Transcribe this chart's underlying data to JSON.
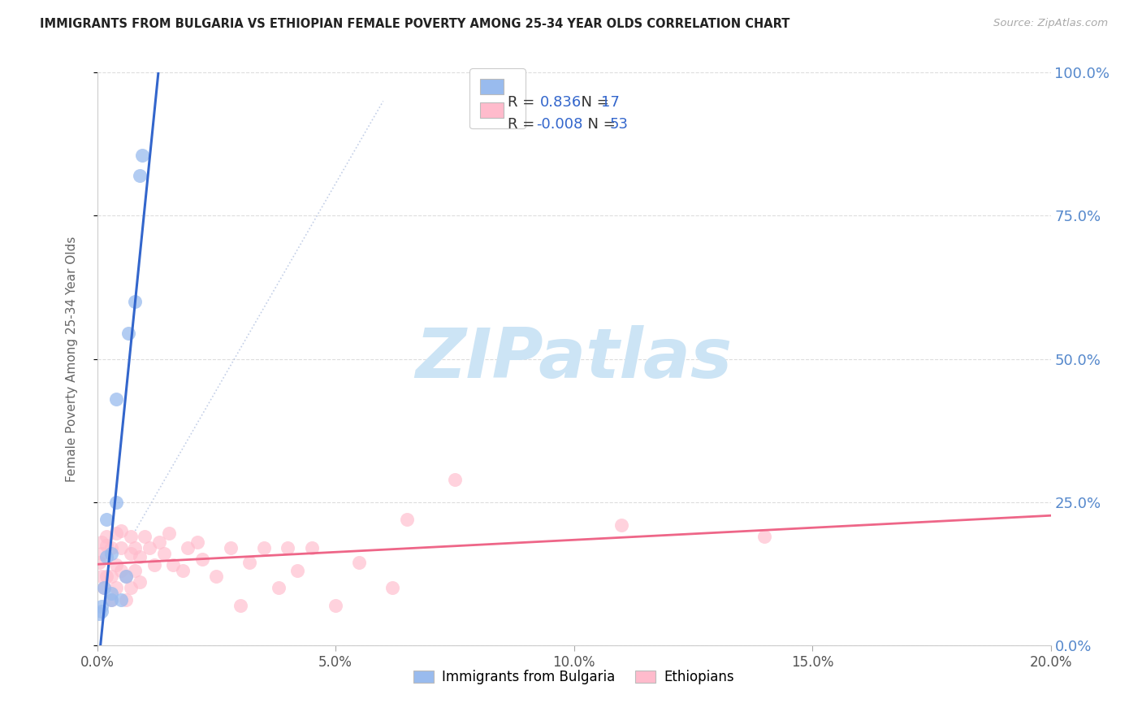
{
  "title": "IMMIGRANTS FROM BULGARIA VS ETHIOPIAN FEMALE POVERTY AMONG 25-34 YEAR OLDS CORRELATION CHART",
  "source": "Source: ZipAtlas.com",
  "ylabel": "Female Poverty Among 25-34 Year Olds",
  "xlim": [
    0.0,
    0.2
  ],
  "ylim": [
    0.0,
    1.0
  ],
  "yticks": [
    0.0,
    0.25,
    0.5,
    0.75,
    1.0
  ],
  "ytick_labels_right": [
    "0.0%",
    "25.0%",
    "50.0%",
    "75.0%",
    "100.0%"
  ],
  "xticks": [
    0.0,
    0.05,
    0.1,
    0.15,
    0.2
  ],
  "xtick_labels": [
    "0.0%",
    "5.0%",
    "10.0%",
    "15.0%",
    "20.0%"
  ],
  "legend_label_1": "Immigrants from Bulgaria",
  "legend_label_2": "Ethiopians",
  "R_bulgaria": 0.836,
  "N_bulgaria": 17,
  "R_ethiopian": -0.008,
  "N_ethiopian": 53,
  "blue_scatter_color": "#99bbee",
  "pink_scatter_color": "#ffbbcc",
  "blue_line_color": "#3366cc",
  "pink_line_color": "#ee6688",
  "blue_text_color": "#3366cc",
  "right_axis_color": "#5588cc",
  "watermark_color": "#cce4f5",
  "watermark": "ZIPatlas",
  "bulgaria_x": [
    0.0005,
    0.001,
    0.001,
    0.0015,
    0.002,
    0.002,
    0.003,
    0.003,
    0.003,
    0.004,
    0.004,
    0.005,
    0.006,
    0.0065,
    0.008,
    0.009,
    0.0095
  ],
  "bulgaria_y": [
    0.055,
    0.068,
    0.06,
    0.1,
    0.22,
    0.155,
    0.08,
    0.09,
    0.16,
    0.43,
    0.25,
    0.08,
    0.12,
    0.545,
    0.6,
    0.82,
    0.855
  ],
  "ethiopian_x": [
    0.0005,
    0.001,
    0.001,
    0.001,
    0.0015,
    0.002,
    0.002,
    0.002,
    0.003,
    0.003,
    0.003,
    0.004,
    0.004,
    0.004,
    0.005,
    0.005,
    0.005,
    0.006,
    0.006,
    0.007,
    0.007,
    0.007,
    0.008,
    0.008,
    0.009,
    0.009,
    0.01,
    0.011,
    0.012,
    0.013,
    0.014,
    0.015,
    0.016,
    0.018,
    0.019,
    0.021,
    0.022,
    0.025,
    0.028,
    0.03,
    0.032,
    0.035,
    0.038,
    0.04,
    0.042,
    0.045,
    0.05,
    0.055,
    0.062,
    0.065,
    0.075,
    0.11,
    0.14
  ],
  "ethiopian_y": [
    0.145,
    0.16,
    0.12,
    0.18,
    0.1,
    0.12,
    0.175,
    0.19,
    0.08,
    0.12,
    0.17,
    0.1,
    0.14,
    0.195,
    0.13,
    0.17,
    0.2,
    0.08,
    0.12,
    0.1,
    0.16,
    0.19,
    0.13,
    0.17,
    0.11,
    0.155,
    0.19,
    0.17,
    0.14,
    0.18,
    0.16,
    0.195,
    0.14,
    0.13,
    0.17,
    0.18,
    0.15,
    0.12,
    0.17,
    0.07,
    0.145,
    0.17,
    0.1,
    0.17,
    0.13,
    0.17,
    0.07,
    0.145,
    0.1,
    0.22,
    0.29,
    0.21,
    0.19
  ]
}
